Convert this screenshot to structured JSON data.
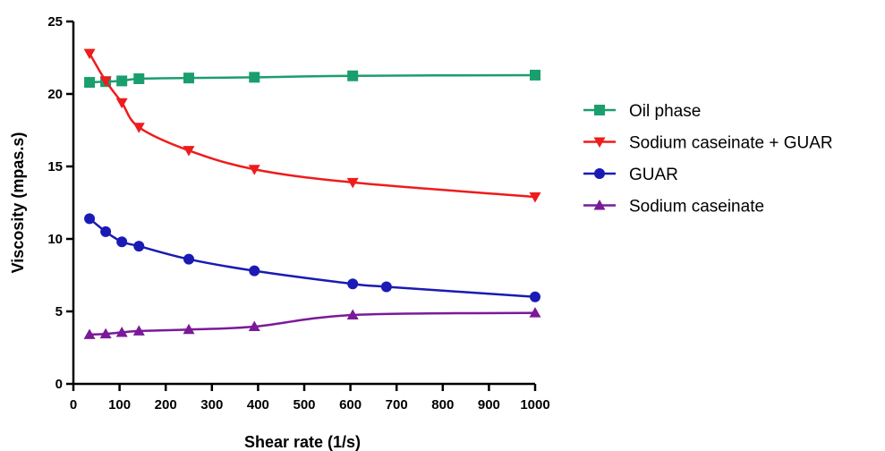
{
  "chart_data": {
    "type": "line",
    "xlabel": "Shear rate (1/s)",
    "ylabel": "Viscosity (mpas.s)",
    "xlim": [
      0,
      1000
    ],
    "ylim": [
      0,
      25
    ],
    "xticks": [
      0,
      100,
      200,
      300,
      400,
      500,
      600,
      700,
      800,
      900,
      1000
    ],
    "yticks": [
      0,
      5,
      10,
      15,
      20,
      25
    ],
    "grid": false,
    "legend_position": "right",
    "series": [
      {
        "name": "Oil phase",
        "color": "#1a9e6e",
        "marker": "square",
        "x": [
          35,
          70,
          105,
          142,
          250,
          392,
          605,
          1000
        ],
        "y": [
          20.8,
          20.85,
          20.9,
          21.05,
          21.1,
          21.15,
          21.25,
          21.3
        ]
      },
      {
        "name": "Sodium caseinate + GUAR",
        "color": "#ee1c1c",
        "marker": "triangle-down",
        "x": [
          35,
          70,
          105,
          142,
          250,
          392,
          605,
          1000
        ],
        "y": [
          22.8,
          20.9,
          19.4,
          17.7,
          16.1,
          14.8,
          13.9,
          12.9
        ]
      },
      {
        "name": "GUAR",
        "color": "#1a1ab4",
        "marker": "circle",
        "x": [
          35,
          70,
          105,
          142,
          250,
          392,
          605,
          678,
          1000
        ],
        "y": [
          11.4,
          10.5,
          9.8,
          9.5,
          8.6,
          7.8,
          6.9,
          6.7,
          6.0
        ]
      },
      {
        "name": "Sodium caseinate",
        "color": "#7a1a9a",
        "marker": "triangle-up",
        "x": [
          35,
          70,
          105,
          142,
          250,
          392,
          605,
          1000
        ],
        "y": [
          3.4,
          3.45,
          3.55,
          3.65,
          3.75,
          3.95,
          4.75,
          4.9
        ]
      }
    ]
  }
}
